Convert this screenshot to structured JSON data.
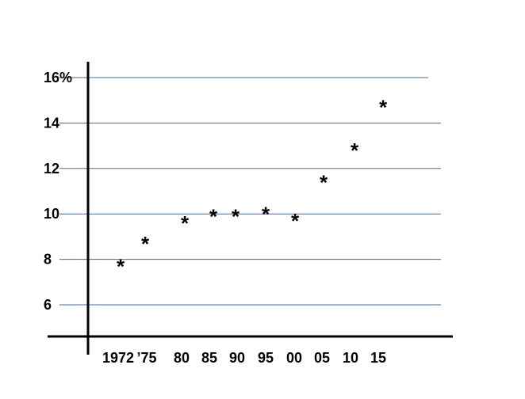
{
  "chart_data": {
    "type": "scatter",
    "x": [
      1972,
      1975,
      1980,
      1985,
      1990,
      1995,
      2000,
      2005,
      2010,
      2015
    ],
    "y": [
      7.9,
      8.9,
      9.8,
      10.1,
      10.1,
      10.2,
      9.9,
      11.6,
      13.0,
      14.9
    ],
    "marker": "*",
    "x_tick_labels": [
      "1972",
      "’75",
      "80",
      "85",
      "90",
      "95",
      "00",
      "05",
      "10",
      "15"
    ],
    "y_ticks": [
      6,
      8,
      10,
      12,
      14,
      16
    ],
    "y_tick_labels": [
      "6",
      "8",
      "10",
      "12",
      "14",
      "16%"
    ],
    "ylim": [
      6,
      16
    ],
    "grid": "horizontal",
    "colors": {
      "gridline": "#4a6a8a",
      "axis": "#000000",
      "marker": "#000000"
    }
  }
}
